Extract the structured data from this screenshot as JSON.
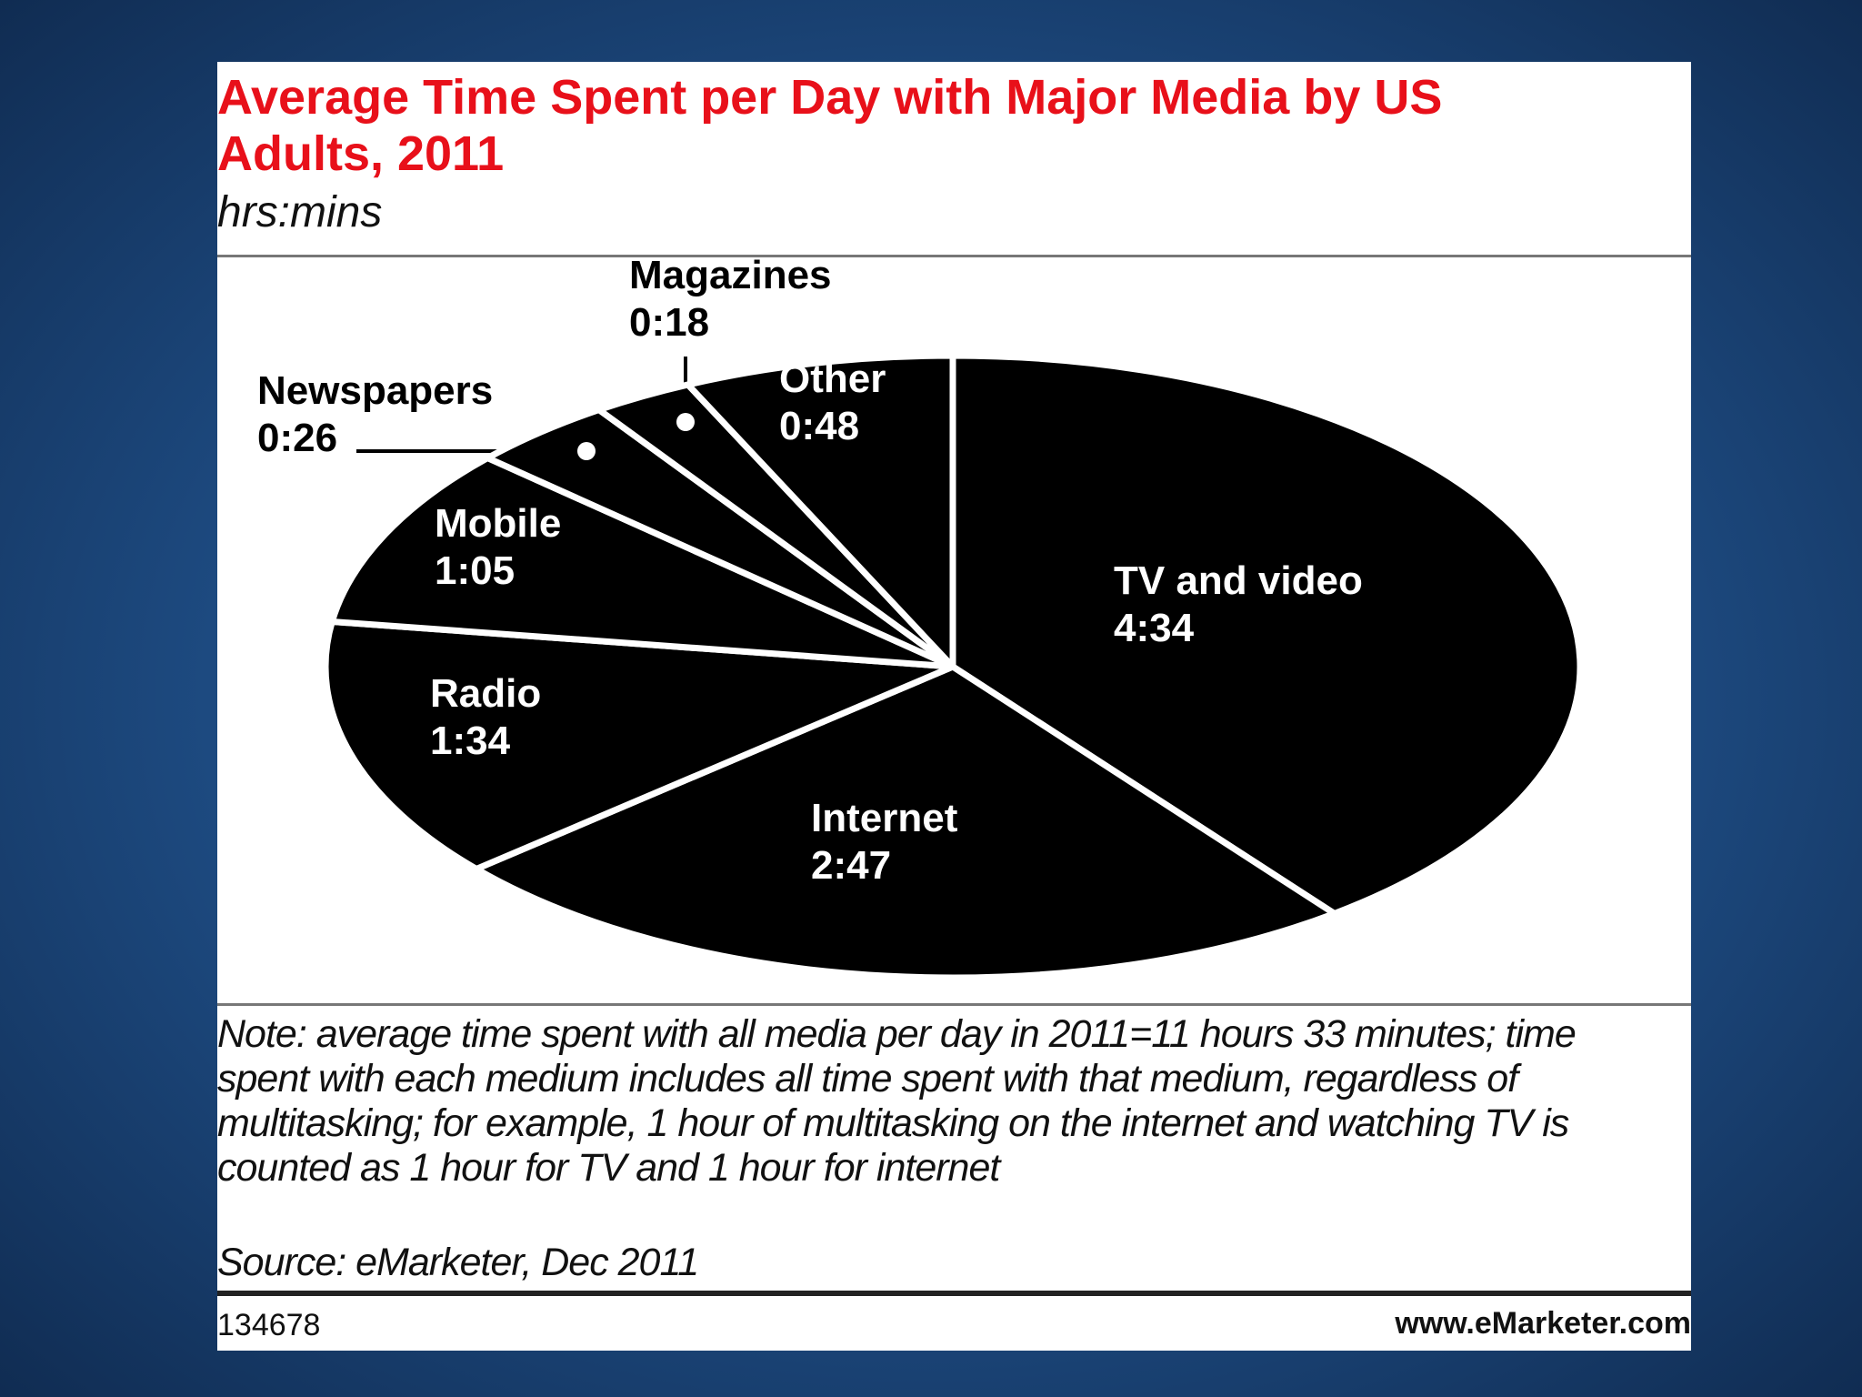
{
  "chart_data": {
    "type": "pie",
    "title": "Average Time Spent per Day with Major Media by US Adults, 2011",
    "subtitle": "hrs:mins",
    "categories": [
      "TV and video",
      "Internet",
      "Radio",
      "Mobile",
      "Newspapers",
      "Magazines",
      "Other"
    ],
    "values": [
      274,
      167,
      94,
      65,
      26,
      18,
      48
    ],
    "value_labels": [
      "4:34",
      "2:47",
      "1:34",
      "1:05",
      "0:26",
      "0:18",
      "0:48"
    ],
    "color": "#000000",
    "note": "Note: average time spent with all media per day in 2011=11 hours 33 minutes; time spent with each medium includes all time spent with that medium, regardless of multitasking; for example, 1 hour of multitasking on the internet and watching TV is counted as 1 hour for TV and 1 hour for internet",
    "source": "Source: eMarketer, Dec 2011",
    "chart_id": "134678",
    "website": "www.eMarketer.com"
  }
}
